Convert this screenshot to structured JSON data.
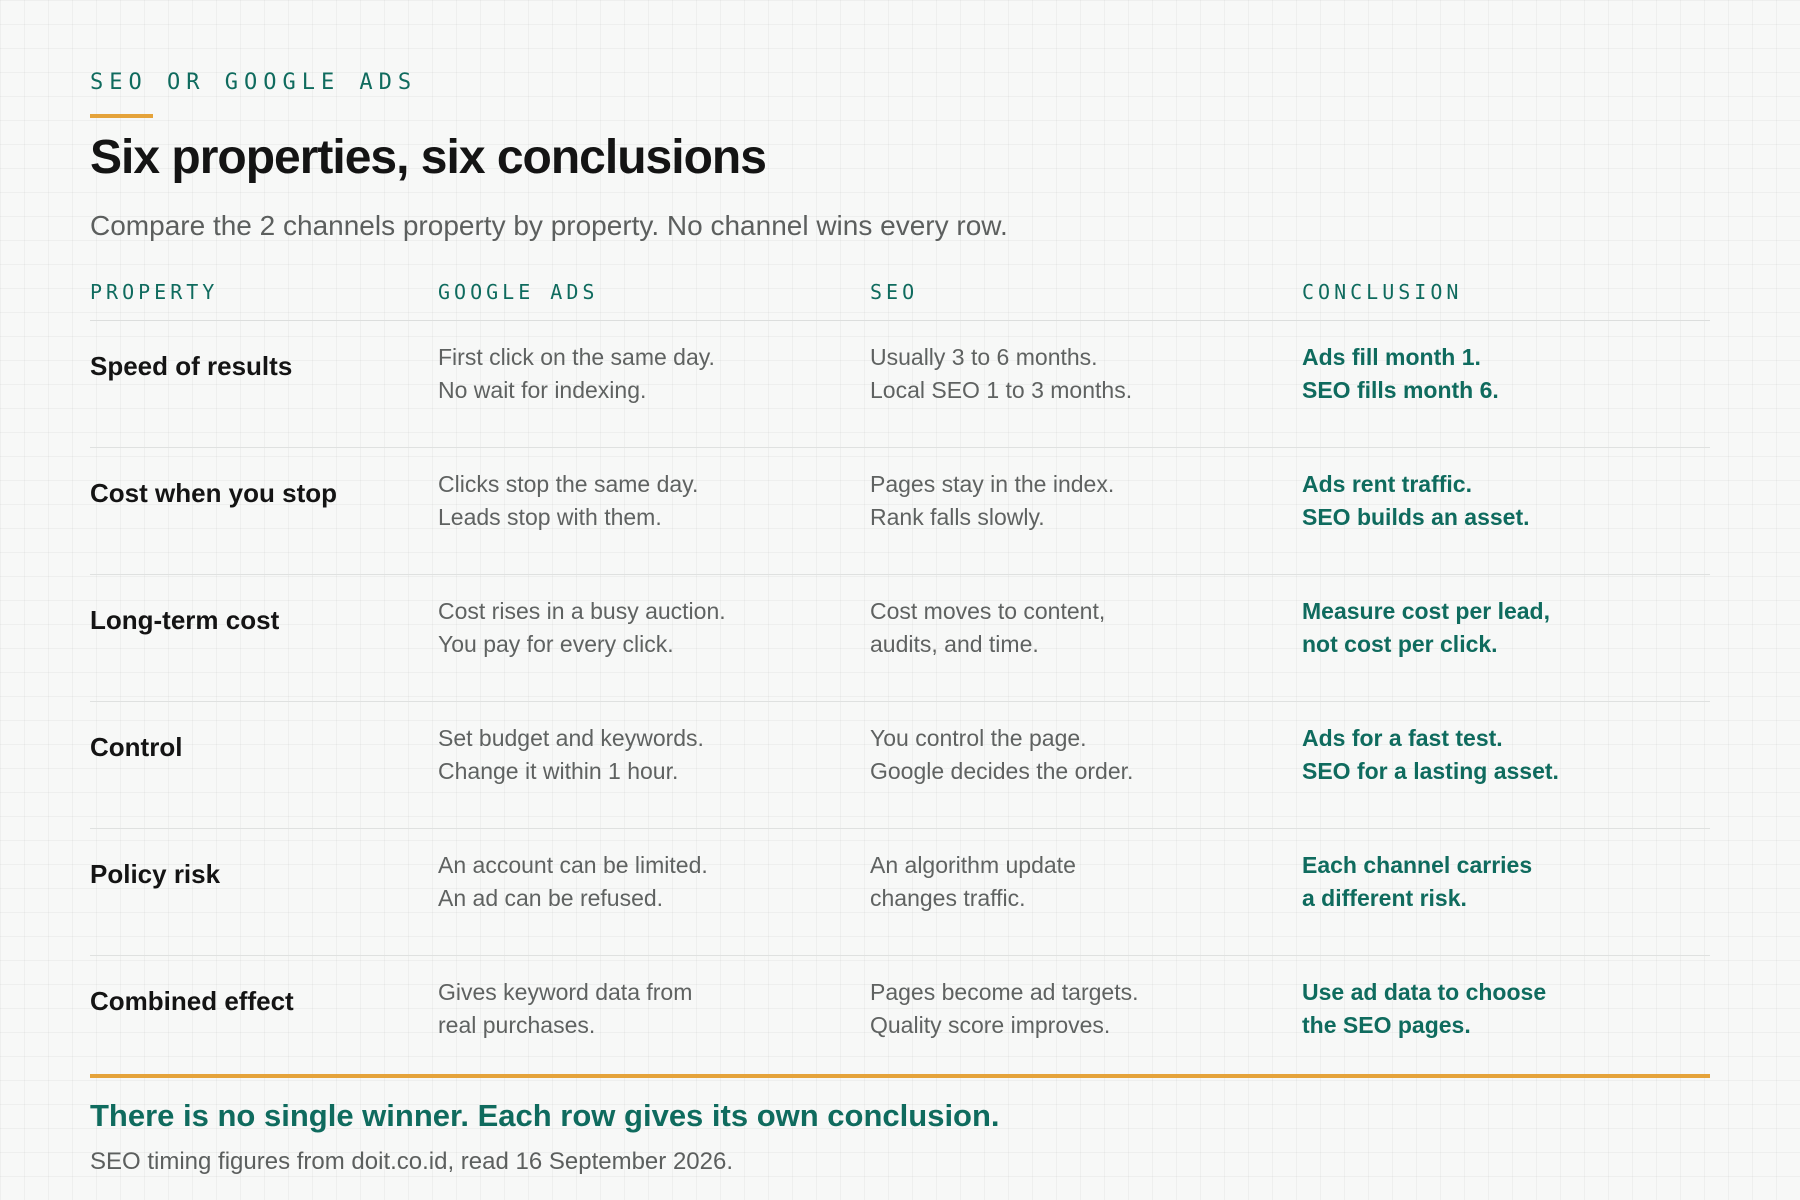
{
  "header": {
    "eyebrow": "SEO OR GOOGLE ADS",
    "title": "Six properties, six conclusions",
    "subtitle": "Compare the 2 channels property by property. No channel wins every row."
  },
  "table": {
    "columns": [
      "PROPERTY",
      "GOOGLE ADS",
      "SEO",
      "CONCLUSION"
    ],
    "rows": [
      {
        "property": "Speed of results",
        "google_ads": [
          "First click on the same day.",
          "No wait for indexing."
        ],
        "seo": [
          "Usually 3 to 6 months.",
          "Local SEO 1 to 3 months."
        ],
        "conclusion": [
          "Ads fill month 1.",
          "SEO fills month 6."
        ]
      },
      {
        "property": "Cost when you stop",
        "google_ads": [
          "Clicks stop the same day.",
          "Leads stop with them."
        ],
        "seo": [
          "Pages stay in the index.",
          "Rank falls slowly."
        ],
        "conclusion": [
          "Ads rent traffic.",
          "SEO builds an asset."
        ]
      },
      {
        "property": "Long-term cost",
        "google_ads": [
          "Cost rises in a busy auction.",
          "You pay for every click."
        ],
        "seo": [
          "Cost moves to content,",
          "audits, and time."
        ],
        "conclusion": [
          "Measure cost per lead,",
          "not cost per click."
        ]
      },
      {
        "property": "Control",
        "google_ads": [
          "Set budget and keywords.",
          "Change it within 1 hour."
        ],
        "seo": [
          "You control the page.",
          "Google decides the order."
        ],
        "conclusion": [
          "Ads for a fast test.",
          "SEO for a lasting asset."
        ]
      },
      {
        "property": "Policy risk",
        "google_ads": [
          "An account can be limited.",
          "An ad can be refused."
        ],
        "seo": [
          "An algorithm update",
          "changes traffic."
        ],
        "conclusion": [
          "Each channel carries",
          "a different risk."
        ]
      },
      {
        "property": "Combined effect",
        "google_ads": [
          "Gives keyword data from",
          "real purchases."
        ],
        "seo": [
          "Pages become ad targets.",
          "Quality score improves."
        ],
        "conclusion": [
          "Use ad data to choose",
          "the SEO pages."
        ]
      }
    ]
  },
  "footer": {
    "title": "There is no single winner. Each row gives its own conclusion.",
    "note": "SEO timing figures from doit.co.id, read 16 September 2026."
  },
  "colors": {
    "accent": "#0f6b5e",
    "highlight": "#e5a33a",
    "background": "#f7f8f7"
  }
}
